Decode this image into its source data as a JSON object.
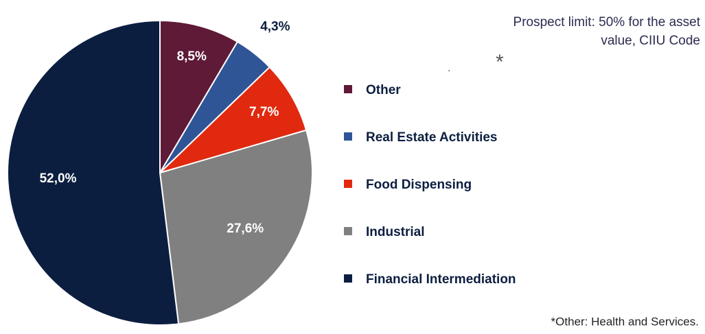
{
  "chart_data": {
    "type": "pie",
    "title": "Prospect limit: 50% for the asset value, CIIU Code",
    "categories": [
      "Other",
      "Real Estate Activities",
      "Food Dispensing",
      "Industrial",
      "Financial Intermediation"
    ],
    "values": [
      8.5,
      4.3,
      7.7,
      27.6,
      52.0
    ],
    "value_labels": [
      "8,5%",
      "4,3%",
      "7,7%",
      "27,6%",
      "52,0%"
    ],
    "colors": [
      "#5e1a36",
      "#2f5597",
      "#e0290f",
      "#808080",
      "#0c1e40"
    ],
    "annotations": [
      "*",
      "."
    ],
    "footnote": "*Other: Health and Services."
  }
}
